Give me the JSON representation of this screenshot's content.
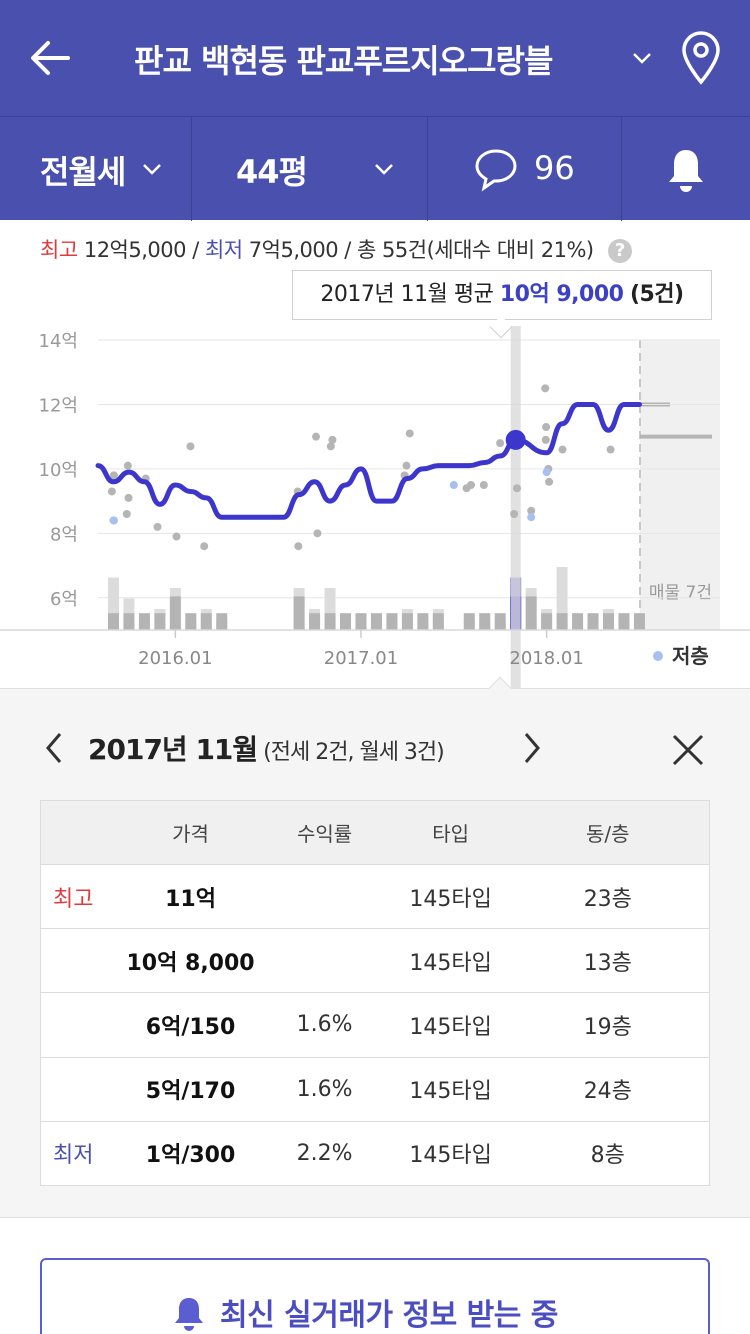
{
  "header": {
    "title": "판교 백현동 판교푸르지오그랑블",
    "back_icon": "arrow-left-icon",
    "location_icon": "map-pin-icon"
  },
  "filters": {
    "deal_type": "전월세",
    "area": "44평",
    "comment_count": "96"
  },
  "summary": {
    "max_label": "최고",
    "max_value": "12억5,000",
    "sep1": "/",
    "min_label": "최저",
    "min_value": "7억5,000",
    "sep2": "/",
    "total": "총 55건(세대수 대비 21%)",
    "help": "?"
  },
  "tooltip": {
    "prefix": "2017년 11월 평균",
    "value": "10억 9,000",
    "count": "(5건)"
  },
  "chart_data": {
    "type": "line",
    "title": "",
    "xlabel": "",
    "ylabel": "",
    "unit": "억",
    "ylim": [
      5,
      14
    ],
    "y_ticks": [
      "14억",
      "12억",
      "10억",
      "8억",
      "6억"
    ],
    "x_ticks": [
      "2016.01",
      "2017.01",
      "2018.01"
    ],
    "selected_month": "2017.11",
    "series": [
      {
        "points": [
          [
            "2015.08",
            10.1
          ],
          [
            "2015.09",
            9.6
          ],
          [
            "2015.10",
            9.9
          ],
          [
            "2015.11",
            9.6
          ],
          [
            "2015.12",
            8.9
          ],
          [
            "2016.01",
            9.5
          ],
          [
            "2016.02",
            9.3
          ],
          [
            "2016.03",
            9.1
          ],
          [
            "2016.04",
            8.5
          ],
          [
            "2016.05",
            8.5
          ],
          [
            "2016.06",
            8.5
          ],
          [
            "2016.07",
            8.5
          ],
          [
            "2016.08",
            8.5
          ],
          [
            "2016.09",
            9.2
          ],
          [
            "2016.10",
            9.6
          ],
          [
            "2016.11",
            9.0
          ],
          [
            "2016.12",
            9.5
          ],
          [
            "2017.01",
            10.0
          ],
          [
            "2017.02",
            9.0
          ],
          [
            "2017.03",
            9.0
          ],
          [
            "2017.04",
            9.7
          ],
          [
            "2017.05",
            10.0
          ],
          [
            "2017.06",
            10.1
          ],
          [
            "2017.07",
            10.1
          ],
          [
            "2017.08",
            10.1
          ],
          [
            "2017.09",
            10.2
          ],
          [
            "2017.10",
            10.4
          ],
          [
            "2017.11",
            10.9
          ],
          [
            "2018.01",
            10.5
          ],
          [
            "2018.02",
            11.4
          ],
          [
            "2018.03",
            12.0
          ],
          [
            "2018.04",
            12.0
          ],
          [
            "2018.05",
            11.2
          ],
          [
            "2018.06",
            12.0
          ],
          [
            "2018.07",
            12.0
          ]
        ],
        "color": "#3c36cc"
      }
    ],
    "scatter": [
      [
        "2015.09",
        9.8
      ],
      [
        "2015.09",
        9.3
      ],
      [
        "2015.09",
        8.4
      ],
      [
        "2015.10",
        10.1
      ],
      [
        "2015.10",
        8.6
      ],
      [
        "2015.10",
        9.1
      ],
      [
        "2015.11",
        9.7
      ],
      [
        "2015.12",
        8.2
      ],
      [
        "2016.01",
        7.9
      ],
      [
        "2016.02",
        10.7
      ],
      [
        "2016.03",
        7.6
      ],
      [
        "2016.09",
        7.6
      ],
      [
        "2016.09",
        9.3
      ],
      [
        "2016.10",
        8.0
      ],
      [
        "2016.10",
        11.0
      ],
      [
        "2016.11",
        10.7
      ],
      [
        "2016.11",
        10.9
      ],
      [
        "2017.04",
        11.1
      ],
      [
        "2017.04",
        9.8
      ],
      [
        "2017.04",
        10.1
      ],
      [
        "2017.08",
        9.5
      ],
      [
        "2017.08",
        9.4
      ],
      [
        "2017.09",
        9.5
      ],
      [
        "2017.10",
        10.8
      ],
      [
        "2017.11",
        8.6
      ],
      [
        "2017.11",
        9.4
      ],
      [
        "2017.12",
        8.7
      ],
      [
        "2018.01",
        9.6
      ],
      [
        "2018.01",
        12.5
      ],
      [
        "2018.01",
        11.3
      ],
      [
        "2018.01",
        10.9
      ],
      [
        "2018.01",
        10.0
      ],
      [
        "2018.02",
        10.6
      ],
      [
        "2018.05",
        10.6
      ]
    ],
    "scatter_low_floor": [
      [
        "2015.09",
        8.4
      ],
      [
        "2017.07",
        9.5
      ],
      [
        "2017.12",
        8.5
      ],
      [
        "2018.01",
        9.9
      ]
    ],
    "listing_label": "매물 7건",
    "listing_levels": [
      12.0,
      11.0
    ],
    "legend": "저층",
    "volume_bars": [
      [
        "2015.09",
        5,
        1
      ],
      [
        "2015.10",
        3,
        1
      ],
      [
        "2015.11",
        1,
        1
      ],
      [
        "2015.12",
        2,
        1
      ],
      [
        "2016.01",
        4,
        2
      ],
      [
        "2016.02",
        1,
        1
      ],
      [
        "2016.03",
        2,
        1
      ],
      [
        "2016.04",
        1,
        1
      ],
      [
        "2016.09",
        4,
        2
      ],
      [
        "2016.10",
        2,
        1
      ],
      [
        "2016.11",
        4,
        1
      ],
      [
        "2016.12",
        1,
        1
      ],
      [
        "2017.01",
        1,
        1
      ],
      [
        "2017.02",
        1,
        1
      ],
      [
        "2017.03",
        1,
        1
      ],
      [
        "2017.04",
        2,
        1
      ],
      [
        "2017.05",
        1,
        1
      ],
      [
        "2017.06",
        2,
        1
      ],
      [
        "2017.08",
        1,
        1
      ],
      [
        "2017.09",
        1,
        1
      ],
      [
        "2017.10",
        1,
        1
      ],
      [
        "2017.11",
        5,
        2
      ],
      [
        "2017.12",
        4,
        2
      ],
      [
        "2018.01",
        2,
        1
      ],
      [
        "2018.02",
        6,
        1
      ],
      [
        "2018.03",
        1,
        1
      ],
      [
        "2018.04",
        1,
        1
      ],
      [
        "2018.05",
        2,
        1
      ],
      [
        "2018.06",
        1,
        1
      ],
      [
        "2018.07",
        1,
        1
      ]
    ]
  },
  "detail": {
    "month": "2017년 11월",
    "month_sub": "(전세 2건, 월세 3건)",
    "columns": [
      "",
      "가격",
      "수익률",
      "타입",
      "동/층"
    ],
    "rows": [
      {
        "rank": "최고",
        "price": "11억",
        "yield": "",
        "type": "145타입",
        "floor": "23층"
      },
      {
        "rank": "",
        "price": "10억 8,000",
        "yield": "",
        "type": "145타입",
        "floor": "13층"
      },
      {
        "rank": "",
        "price": "6억/150",
        "yield": "1.6%",
        "type": "145타입",
        "floor": "19층"
      },
      {
        "rank": "",
        "price": "5억/170",
        "yield": "1.6%",
        "type": "145타입",
        "floor": "24층"
      },
      {
        "rank": "최저",
        "price": "1억/300",
        "yield": "2.2%",
        "type": "145타입",
        "floor": "8층"
      }
    ]
  },
  "alert": {
    "label": "최신 실거래가 정보 받는 중"
  },
  "colors": {
    "header_bg": "#4a50ae",
    "line": "#3c36cc",
    "max": "#e03b3b",
    "min": "#4a50ae",
    "low_floor": "#a8c0f0"
  }
}
